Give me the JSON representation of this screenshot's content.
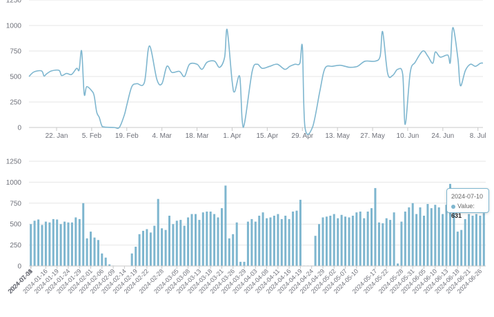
{
  "colors": {
    "series": "#7eb6cf",
    "grid": "#e6e6e6",
    "axis": "#c8c8c8",
    "text": "#6e7079"
  },
  "tooltip": {
    "date": "2024-07-10",
    "label": "Value:",
    "value": "631"
  },
  "chart_data": [
    {
      "type": "line",
      "title": "",
      "ylim": [
        0,
        1250
      ],
      "yticks": [
        "0",
        "250",
        "500",
        "750",
        "1000",
        "1250"
      ],
      "xlim": [
        "2024-01-11",
        "2024-07-10"
      ],
      "xticks": [
        {
          "date": "2024-01-22",
          "label": "22. Jan"
        },
        {
          "date": "2024-02-05",
          "label": "5. Feb"
        },
        {
          "date": "2024-02-19",
          "label": "19. Feb"
        },
        {
          "date": "2024-03-04",
          "label": "4. Mar"
        },
        {
          "date": "2024-03-18",
          "label": "18. Mar"
        },
        {
          "date": "2024-04-01",
          "label": "1. Apr"
        },
        {
          "date": "2024-04-15",
          "label": "15. Apr"
        },
        {
          "date": "2024-04-29",
          "label": "29. Apr"
        },
        {
          "date": "2024-05-13",
          "label": "13. May"
        },
        {
          "date": "2024-05-27",
          "label": "27. May"
        },
        {
          "date": "2024-06-10",
          "label": "10. Jun"
        },
        {
          "date": "2024-06-24",
          "label": "24. Jun"
        },
        {
          "date": "2024-07-08",
          "label": "8. Jul"
        }
      ],
      "grid": true,
      "series": [
        {
          "points": [
            [
              "2024-01-11",
              500
            ],
            [
              "2024-01-13",
              545
            ],
            [
              "2024-01-16",
              555
            ],
            [
              "2024-01-17",
              505
            ],
            [
              "2024-01-18",
              525
            ],
            [
              "2024-01-20",
              555
            ],
            [
              "2024-01-23",
              560
            ],
            [
              "2024-01-24",
              510
            ],
            [
              "2024-01-26",
              530
            ],
            [
              "2024-01-28",
              520
            ],
            [
              "2024-01-30",
              580
            ],
            [
              "2024-01-31",
              565
            ],
            [
              "2024-02-01",
              750
            ],
            [
              "2024-02-02",
              330
            ],
            [
              "2024-02-03",
              400
            ],
            [
              "2024-02-05",
              360
            ],
            [
              "2024-02-06",
              310
            ],
            [
              "2024-02-07",
              150
            ],
            [
              "2024-02-08",
              100
            ],
            [
              "2024-02-09",
              20
            ],
            [
              "2024-02-10",
              5
            ],
            [
              "2024-02-14",
              0
            ],
            [
              "2024-02-16",
              0
            ],
            [
              "2024-02-18",
              120
            ],
            [
              "2024-02-19",
              220
            ],
            [
              "2024-02-21",
              400
            ],
            [
              "2024-02-23",
              430
            ],
            [
              "2024-02-26",
              440
            ],
            [
              "2024-02-28",
              800
            ],
            [
              "2024-03-02",
              470
            ],
            [
              "2024-03-04",
              430
            ],
            [
              "2024-03-06",
              600
            ],
            [
              "2024-03-08",
              540
            ],
            [
              "2024-03-11",
              550
            ],
            [
              "2024-03-13",
              500
            ],
            [
              "2024-03-15",
              620
            ],
            [
              "2024-03-18",
              620
            ],
            [
              "2024-03-20",
              570
            ],
            [
              "2024-03-22",
              640
            ],
            [
              "2024-03-25",
              650
            ],
            [
              "2024-03-27",
              590
            ],
            [
              "2024-03-29",
              690
            ],
            [
              "2024-03-30",
              960
            ],
            [
              "2024-04-01",
              450
            ],
            [
              "2024-04-02",
              350
            ],
            [
              "2024-04-04",
              500
            ],
            [
              "2024-04-05",
              70
            ],
            [
              "2024-04-06",
              50
            ],
            [
              "2024-04-09",
              550
            ],
            [
              "2024-04-11",
              620
            ],
            [
              "2024-04-13",
              580
            ],
            [
              "2024-04-16",
              600
            ],
            [
              "2024-04-19",
              620
            ],
            [
              "2024-04-22",
              570
            ],
            [
              "2024-04-24",
              600
            ],
            [
              "2024-04-26",
              620
            ],
            [
              "2024-04-28",
              630
            ],
            [
              "2024-04-29",
              790
            ],
            [
              "2024-04-30",
              10
            ],
            [
              "2024-05-03",
              0
            ],
            [
              "2024-05-06",
              360
            ],
            [
              "2024-05-08",
              580
            ],
            [
              "2024-05-11",
              600
            ],
            [
              "2024-05-14",
              610
            ],
            [
              "2024-05-16",
              600
            ],
            [
              "2024-05-18",
              590
            ],
            [
              "2024-05-21",
              600
            ],
            [
              "2024-05-24",
              650
            ],
            [
              "2024-05-28",
              650
            ],
            [
              "2024-05-30",
              700
            ],
            [
              "2024-05-31",
              940
            ],
            [
              "2024-06-02",
              530
            ],
            [
              "2024-06-04",
              510
            ],
            [
              "2024-06-06",
              570
            ],
            [
              "2024-06-08",
              520
            ],
            [
              "2024-06-09",
              30
            ],
            [
              "2024-06-11",
              540
            ],
            [
              "2024-06-13",
              640
            ],
            [
              "2024-06-16",
              750
            ],
            [
              "2024-06-18",
              700
            ],
            [
              "2024-06-20",
              630
            ],
            [
              "2024-06-21",
              740
            ],
            [
              "2024-06-23",
              690
            ],
            [
              "2024-06-26",
              710
            ],
            [
              "2024-06-27",
              640
            ],
            [
              "2024-06-28",
              980
            ],
            [
              "2024-06-30",
              680
            ],
            [
              "2024-07-01",
              410
            ],
            [
              "2024-07-03",
              560
            ],
            [
              "2024-07-05",
              620
            ],
            [
              "2024-07-07",
              600
            ],
            [
              "2024-07-09",
              630
            ],
            [
              "2024-07-10",
              631
            ]
          ]
        }
      ]
    },
    {
      "type": "bar",
      "title": "",
      "ylim": [
        0,
        1250
      ],
      "yticks": [
        "0",
        "250",
        "500",
        "750",
        "1000",
        "1250"
      ],
      "xticks": [
        "2024-01-11",
        "2024-01-16",
        "2024-01-19",
        "2024-01-24",
        "2024-01-29",
        "2024-02-01",
        "2024-02-06",
        "2024-02-09",
        "2024-02-14",
        "2024-02-19",
        "2024-02-22",
        "2024-02-28",
        "2024-03-05",
        "2024-03-08",
        "2024-03-13",
        "2024-03-18",
        "2024-03-21",
        "2024-03-26",
        "2024-03-29",
        "2024-04-03",
        "2024-04-08",
        "2024-04-11",
        "2024-04-16",
        "2024-04-19",
        "2024-04-24",
        "2024-04-29",
        "2024-05-02",
        "2024-05-07",
        "2024-05-10",
        "2024-05-17",
        "2024-05-22",
        "2024-05-28",
        "2024-05-31",
        "2024-06-05",
        "2024-06-10",
        "2024-06-13",
        "2024-06-18",
        "2024-06-21",
        "2024-06-26",
        "2024-07-01",
        "2024-07-04",
        "2024-07-09"
      ],
      "bars": [
        [
          "2024-01-11",
          500
        ],
        [
          "2024-01-12",
          540
        ],
        [
          "2024-01-13",
          555
        ],
        [
          "2024-01-15",
          490
        ],
        [
          "2024-01-16",
          530
        ],
        [
          "2024-01-17",
          520
        ],
        [
          "2024-01-18",
          560
        ],
        [
          "2024-01-19",
          555
        ],
        [
          "2024-01-22",
          500
        ],
        [
          "2024-01-23",
          530
        ],
        [
          "2024-01-24",
          520
        ],
        [
          "2024-01-25",
          520
        ],
        [
          "2024-01-26",
          580
        ],
        [
          "2024-01-29",
          560
        ],
        [
          "2024-01-30",
          750
        ],
        [
          "2024-01-31",
          330
        ],
        [
          "2024-02-01",
          410
        ],
        [
          "2024-02-02",
          340
        ],
        [
          "2024-02-05",
          310
        ],
        [
          "2024-02-06",
          150
        ],
        [
          "2024-02-07",
          100
        ],
        [
          "2024-02-08",
          20
        ],
        [
          "2024-02-09",
          5
        ],
        [
          "2024-02-12",
          3
        ],
        [
          "2024-02-13",
          3
        ],
        [
          "2024-02-14",
          3
        ],
        [
          "2024-02-15",
          3
        ],
        [
          "2024-02-16",
          150
        ],
        [
          "2024-02-19",
          230
        ],
        [
          "2024-02-20",
          380
        ],
        [
          "2024-02-21",
          420
        ],
        [
          "2024-02-22",
          440
        ],
        [
          "2024-02-23",
          400
        ],
        [
          "2024-02-26",
          480
        ],
        [
          "2024-02-27",
          800
        ],
        [
          "2024-02-28",
          450
        ],
        [
          "2024-02-29",
          430
        ],
        [
          "2024-03-01",
          600
        ],
        [
          "2024-03-04",
          500
        ],
        [
          "2024-03-05",
          540
        ],
        [
          "2024-03-06",
          550
        ],
        [
          "2024-03-07",
          480
        ],
        [
          "2024-03-08",
          580
        ],
        [
          "2024-03-11",
          620
        ],
        [
          "2024-03-12",
          620
        ],
        [
          "2024-03-13",
          550
        ],
        [
          "2024-03-14",
          640
        ],
        [
          "2024-03-15",
          650
        ],
        [
          "2024-03-18",
          650
        ],
        [
          "2024-03-19",
          620
        ],
        [
          "2024-03-20",
          580
        ],
        [
          "2024-03-21",
          690
        ],
        [
          "2024-03-22",
          960
        ],
        [
          "2024-03-25",
          330
        ],
        [
          "2024-03-26",
          380
        ],
        [
          "2024-03-27",
          520
        ],
        [
          "2024-03-28",
          50
        ],
        [
          "2024-03-29",
          50
        ],
        [
          "2024-04-01",
          530
        ],
        [
          "2024-04-02",
          560
        ],
        [
          "2024-04-03",
          530
        ],
        [
          "2024-04-04",
          600
        ],
        [
          "2024-04-05",
          640
        ],
        [
          "2024-04-08",
          570
        ],
        [
          "2024-04-09",
          580
        ],
        [
          "2024-04-10",
          600
        ],
        [
          "2024-04-11",
          620
        ],
        [
          "2024-04-12",
          560
        ],
        [
          "2024-04-15",
          600
        ],
        [
          "2024-04-16",
          560
        ],
        [
          "2024-04-17",
          650
        ],
        [
          "2024-04-18",
          660
        ],
        [
          "2024-04-19",
          790
        ],
        [
          "2024-04-22",
          5
        ],
        [
          "2024-04-23",
          5
        ],
        [
          "2024-04-24",
          5
        ],
        [
          "2024-04-25",
          360
        ],
        [
          "2024-04-26",
          500
        ],
        [
          "2024-04-29",
          580
        ],
        [
          "2024-04-30",
          590
        ],
        [
          "2024-05-01",
          600
        ],
        [
          "2024-05-02",
          620
        ],
        [
          "2024-05-03",
          570
        ],
        [
          "2024-05-06",
          610
        ],
        [
          "2024-05-07",
          590
        ],
        [
          "2024-05-08",
          580
        ],
        [
          "2024-05-09",
          600
        ],
        [
          "2024-05-10",
          640
        ],
        [
          "2024-05-13",
          650
        ],
        [
          "2024-05-14",
          570
        ],
        [
          "2024-05-15",
          650
        ],
        [
          "2024-05-16",
          690
        ],
        [
          "2024-05-17",
          930
        ],
        [
          "2024-05-20",
          520
        ],
        [
          "2024-05-21",
          510
        ],
        [
          "2024-05-22",
          570
        ],
        [
          "2024-05-23",
          550
        ],
        [
          "2024-05-24",
          640
        ],
        [
          "2024-05-27",
          30
        ],
        [
          "2024-05-28",
          530
        ],
        [
          "2024-05-29",
          650
        ],
        [
          "2024-05-30",
          700
        ],
        [
          "2024-05-31",
          750
        ],
        [
          "2024-06-03",
          620
        ],
        [
          "2024-06-04",
          700
        ],
        [
          "2024-06-05",
          600
        ],
        [
          "2024-06-06",
          740
        ],
        [
          "2024-06-07",
          690
        ],
        [
          "2024-06-10",
          730
        ],
        [
          "2024-06-11",
          700
        ],
        [
          "2024-06-12",
          620
        ],
        [
          "2024-06-13",
          730
        ],
        [
          "2024-06-14",
          980
        ],
        [
          "2024-06-17",
          700
        ],
        [
          "2024-06-18",
          410
        ],
        [
          "2024-06-19",
          430
        ],
        [
          "2024-06-20",
          560
        ],
        [
          "2024-06-21",
          620
        ],
        [
          "2024-06-24",
          600
        ],
        [
          "2024-06-25",
          620
        ],
        [
          "2024-06-26",
          600
        ],
        [
          "2024-06-27",
          631
        ]
      ],
      "grid": true
    }
  ]
}
